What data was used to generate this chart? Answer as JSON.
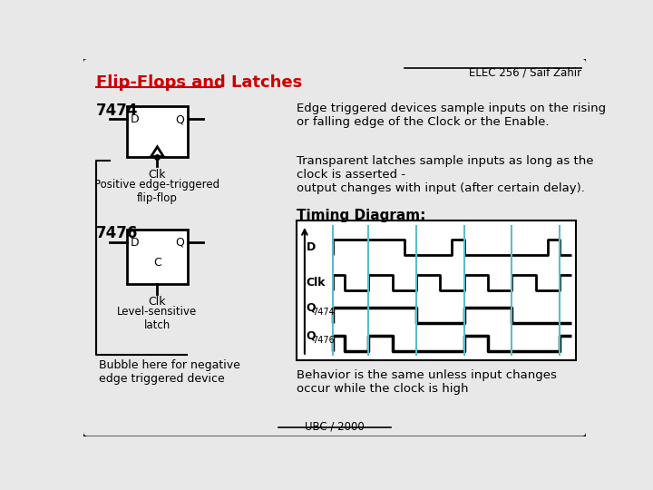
{
  "bg_color": "#e8e8e8",
  "border_color": "#000000",
  "title_text": "Flip-Flops and Latches",
  "title_color": "#cc0000",
  "header_text": "ELEC 256 / Saif Zahir",
  "footer_text": "UBC / 2000",
  "text_7474": "7474",
  "text_7476": "7476",
  "label_pos_edge": "Positive edge-triggered\nflip-flop",
  "label_level_sensitive": "Level-sensitive\nlatch",
  "label_bubble": "Bubble here for negative\nedge triggered device",
  "desc1": "Edge triggered devices sample inputs on the rising\nor falling edge of the Clock or the Enable.",
  "desc2": "Transparent latches sample inputs as long as the\nclock is asserted -\noutput changes with input (after certain delay).",
  "timing_title": "Timing Diagram:",
  "behavior_text": "Behavior is the same unless input changes\noccur while the clock is high",
  "cyan_line_color": "#5bbccc",
  "signal_color": "#000000",
  "timing_bg": "#ffffff"
}
